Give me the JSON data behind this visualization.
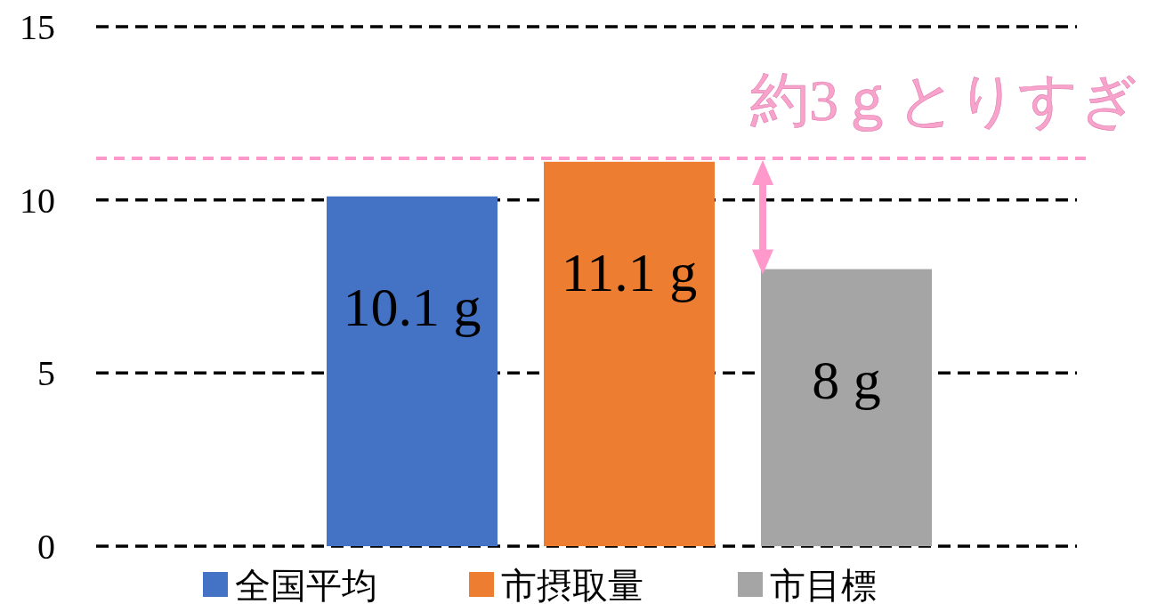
{
  "chart_data": {
    "type": "bar",
    "categories": [
      null
    ],
    "series": [
      {
        "name": "全国平均",
        "color": "#4472c4",
        "values": [
          10.1
        ],
        "value_labels": [
          "10.1 g"
        ]
      },
      {
        "name": "市摂取量",
        "color": "#ed7d31",
        "values": [
          11.1
        ],
        "value_labels": [
          "11.1 g"
        ]
      },
      {
        "name": "市目標",
        "color": "#a5a5a5",
        "values": [
          8
        ],
        "value_labels": [
          "8 g"
        ]
      }
    ],
    "ylim": [
      0,
      15
    ],
    "yticks": [
      0,
      5,
      10,
      15
    ],
    "grid": "y",
    "legend": "bottom",
    "ref_lines": [
      {
        "axis": "y",
        "value": 11.2,
        "color": "#ff99cc",
        "line_style": "dashed"
      }
    ],
    "annotations": [
      "約3ｇとりすぎ"
    ]
  }
}
